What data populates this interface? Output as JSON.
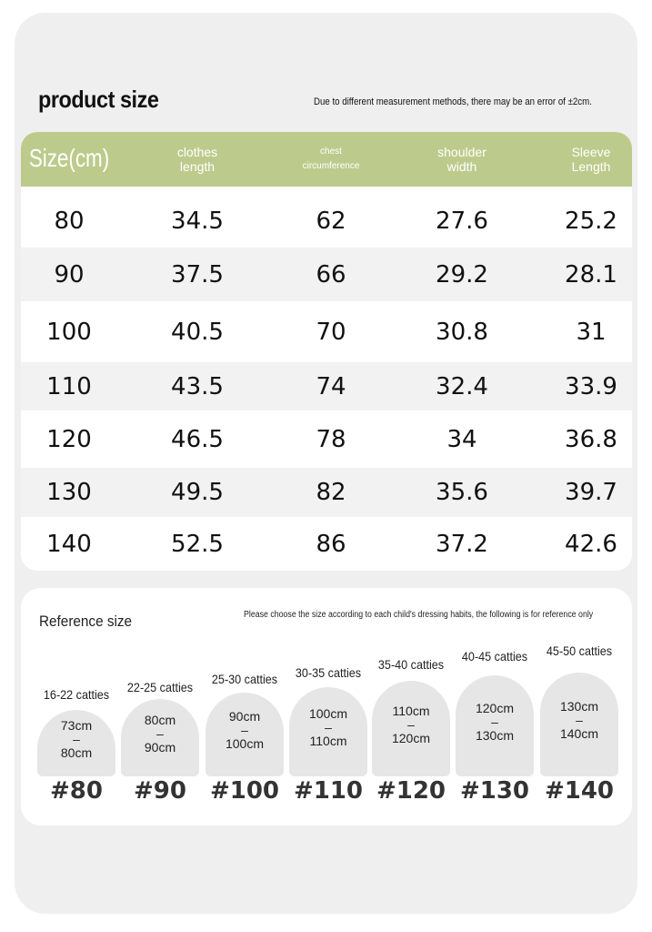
{
  "header": {
    "title": "product size",
    "note": "Due to different measurement methods, there may be an error of ±2cm."
  },
  "table": {
    "columns": [
      [
        "Size(cm)"
      ],
      [
        "clothes",
        "length"
      ],
      [
        "chest",
        "circumference"
      ],
      [
        "shoulder",
        "width"
      ],
      [
        "Sleeve",
        "Length"
      ]
    ],
    "rows": [
      [
        "80",
        "34.5",
        "62",
        "27.6",
        "25.2"
      ],
      [
        "90",
        "37.5",
        "66",
        "29.2",
        "28.1"
      ],
      [
        "100",
        "40.5",
        "70",
        "30.8",
        "31"
      ],
      [
        "110",
        "43.5",
        "74",
        "32.4",
        "33.9"
      ],
      [
        "120",
        "46.5",
        "78",
        "34",
        "36.8"
      ],
      [
        "130",
        "49.5",
        "82",
        "35.6",
        "39.7"
      ],
      [
        "140",
        "52.5",
        "86",
        "37.2",
        "42.6"
      ]
    ]
  },
  "reference": {
    "title": "Reference size",
    "note": "Please choose the size according to each child's dressing habits, the following is for reference only",
    "items": [
      {
        "catties": "16-22 catties",
        "from": "73cm",
        "dash": "–",
        "to": "80cm",
        "size": "#80"
      },
      {
        "catties": "22-25 catties",
        "from": "80cm",
        "dash": "–",
        "to": "90cm",
        "size": "#90"
      },
      {
        "catties": "25-30 catties",
        "from": "90cm",
        "dash": "–",
        "to": "100cm",
        "size": "#100"
      },
      {
        "catties": "30-35 catties",
        "from": "100cm",
        "dash": "–",
        "to": "110cm",
        "size": "#110"
      },
      {
        "catties": "35-40 catties",
        "from": "110cm",
        "dash": "–",
        "to": "120cm",
        "size": "#120"
      },
      {
        "catties": "40-45 catties",
        "from": "120cm",
        "dash": "–",
        "to": "130cm",
        "size": "#130"
      },
      {
        "catties": "45-50 catties",
        "from": "130cm",
        "dash": "–",
        "to": "140cm",
        "size": "#140"
      }
    ]
  }
}
